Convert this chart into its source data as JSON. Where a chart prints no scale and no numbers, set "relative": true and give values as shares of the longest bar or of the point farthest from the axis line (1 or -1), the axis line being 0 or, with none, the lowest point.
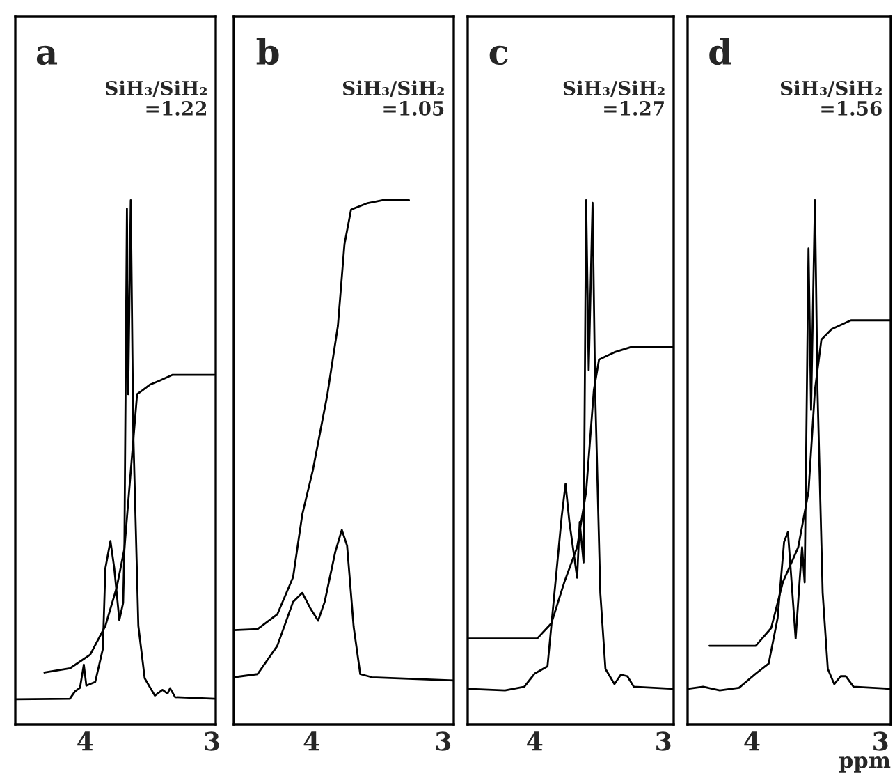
{
  "chart_data": [
    {
      "type": "line",
      "title": "a",
      "annotations": [
        "SiH₃/SiH₂\n=1.22"
      ],
      "relative": true,
      "xlim": [
        4.55,
        2.97
      ],
      "xticks": [
        4,
        3
      ],
      "tick_labels": "x",
      "series": [
        {
          "color": "#000000",
          "x": [
            4.55,
            4.12,
            4.08,
            4.04,
            4.01,
            3.99,
            3.92,
            3.86,
            3.84,
            3.8,
            3.77,
            3.73,
            3.7,
            3.69,
            3.67,
            3.66,
            3.64,
            3.62,
            3.58,
            3.53,
            3.45,
            3.39,
            3.35,
            3.33,
            3.29,
            2.98
          ],
          "values": [
            0.048,
            0.049,
            0.063,
            0.07,
            0.114,
            0.074,
            0.081,
            0.144,
            0.298,
            0.35,
            0.298,
            0.199,
            0.232,
            0.335,
            0.984,
            0.63,
            1.0,
            0.556,
            0.188,
            0.088,
            0.055,
            0.066,
            0.059,
            0.069,
            0.052,
            0.049
          ]
        },
        {
          "color": "#000000",
          "x": [
            4.32,
            4.12,
            3.96,
            3.84,
            3.75,
            3.69,
            3.64,
            3.59,
            3.55,
            3.49,
            3.41,
            3.31,
            2.98
          ],
          "values": [
            0.099,
            0.107,
            0.133,
            0.188,
            0.262,
            0.335,
            0.483,
            0.63,
            0.637,
            0.648,
            0.656,
            0.667,
            0.667
          ]
        }
      ]
    },
    {
      "type": "line",
      "title": "b",
      "annotations": [
        "SiH₃/SiH₂\n=1.05"
      ],
      "relative": true,
      "xlim": [
        4.59,
        2.92
      ],
      "xticks": [
        4,
        3
      ],
      "tick_labels": "x",
      "series": [
        {
          "color": "#000000",
          "x": [
            4.59,
            4.41,
            4.26,
            4.14,
            4.07,
            4.01,
            3.95,
            3.9,
            3.82,
            3.77,
            3.73,
            3.68,
            3.63,
            3.54,
            2.92
          ],
          "values": [
            0.09,
            0.096,
            0.15,
            0.234,
            0.251,
            0.222,
            0.198,
            0.234,
            0.329,
            0.371,
            0.341,
            0.186,
            0.096,
            0.09,
            0.084
          ]
        },
        {
          "color": "#000000",
          "x": [
            4.59,
            4.41,
            4.26,
            4.14,
            4.07,
            3.99,
            3.88,
            3.8,
            3.75,
            3.7,
            3.58,
            3.46,
            3.26
          ],
          "values": [
            0.18,
            0.182,
            0.21,
            0.281,
            0.401,
            0.485,
            0.629,
            0.76,
            0.916,
            0.982,
            0.994,
            1.0,
            1.0
          ]
        }
      ]
    },
    {
      "type": "line",
      "title": "c",
      "annotations": [
        "SiH₃/SiH₂\n=1.27"
      ],
      "relative": true,
      "xlim": [
        4.52,
        2.92
      ],
      "xticks": [
        4,
        3
      ],
      "tick_labels": "x",
      "series": [
        {
          "color": "#000000",
          "x": [
            4.52,
            4.23,
            4.08,
            4.0,
            3.9,
            3.79,
            3.76,
            3.73,
            3.67,
            3.65,
            3.62,
            3.6,
            3.58,
            3.55,
            3.53,
            3.49,
            3.45,
            3.38,
            3.33,
            3.28,
            3.23,
            2.92
          ],
          "values": [
            0.068,
            0.065,
            0.072,
            0.097,
            0.111,
            0.396,
            0.459,
            0.386,
            0.28,
            0.386,
            0.309,
            1.0,
            0.676,
            0.995,
            0.638,
            0.251,
            0.106,
            0.077,
            0.095,
            0.092,
            0.072,
            0.068
          ]
        },
        {
          "color": "#000000",
          "x": [
            4.51,
            3.98,
            3.87,
            3.77,
            3.67,
            3.6,
            3.54,
            3.5,
            3.38,
            3.25,
            2.92
          ],
          "values": [
            0.164,
            0.164,
            0.193,
            0.271,
            0.338,
            0.444,
            0.638,
            0.696,
            0.71,
            0.72,
            0.72
          ]
        }
      ]
    },
    {
      "type": "line",
      "title": "d",
      "xlabel": "ppm",
      "annotations": [
        "SiH₃/SiH₂\n=1.56"
      ],
      "relative": true,
      "xlim": [
        4.5,
        2.92
      ],
      "xticks": [
        4,
        3
      ],
      "tick_labels": "x",
      "series": [
        {
          "color": "#000000",
          "x": [
            4.5,
            4.38,
            4.25,
            4.1,
            3.97,
            3.87,
            3.8,
            3.75,
            3.72,
            3.7,
            3.66,
            3.63,
            3.61,
            3.59,
            3.56,
            3.54,
            3.51,
            3.49,
            3.45,
            3.41,
            3.36,
            3.31,
            3.27,
            3.21,
            2.92
          ],
          "values": [
            0.068,
            0.072,
            0.065,
            0.07,
            0.097,
            0.116,
            0.203,
            0.348,
            0.367,
            0.3,
            0.164,
            0.271,
            0.338,
            0.271,
            0.908,
            0.6,
            1.0,
            0.638,
            0.251,
            0.106,
            0.077,
            0.092,
            0.092,
            0.072,
            0.068
          ]
        },
        {
          "color": "#000000",
          "x": [
            4.33,
            3.97,
            3.85,
            3.76,
            3.64,
            3.56,
            3.51,
            3.46,
            3.38,
            3.23,
            2.92
          ],
          "values": [
            0.15,
            0.15,
            0.184,
            0.271,
            0.338,
            0.444,
            0.638,
            0.734,
            0.754,
            0.771,
            0.771
          ]
        }
      ]
    }
  ]
}
